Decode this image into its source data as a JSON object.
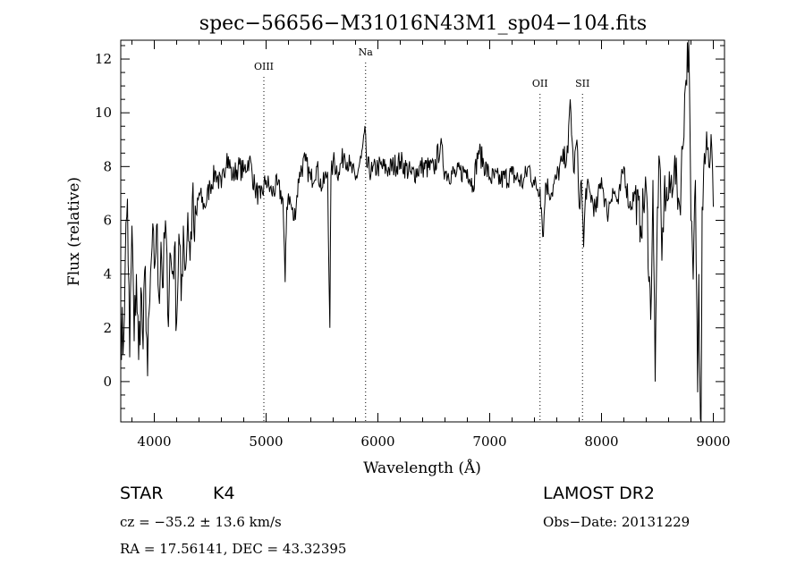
{
  "chart_data": {
    "type": "line",
    "title": "spec−56656−M31016N43M1_sp04−104.fits",
    "xlabel": "Wavelength (Å)",
    "ylabel": "Flux (relative)",
    "xlim": [
      3700,
      9100
    ],
    "ylim": [
      -1.5,
      12.7
    ],
    "xticks": [
      4000,
      5000,
      6000,
      7000,
      8000,
      9000
    ],
    "yticks": [
      0,
      2,
      4,
      6,
      8,
      10,
      12
    ],
    "series": [
      {
        "x": [
          3700,
          3720,
          3740,
          3760,
          3780,
          3800,
          3820,
          3840,
          3860,
          3880,
          3900,
          3920,
          3940,
          3960,
          3980,
          4000,
          4020,
          4040,
          4060,
          4080,
          4100,
          4120,
          4140,
          4160,
          4180,
          4200,
          4220,
          4240,
          4260,
          4280,
          4300,
          4320,
          4340,
          4360,
          4380,
          4400,
          4450,
          4500,
          4550,
          4600,
          4650,
          4700,
          4750,
          4800,
          4850,
          4900,
          4950,
          5000,
          5050,
          5100,
          5150,
          5170,
          5185,
          5200,
          5250,
          5300,
          5350,
          5400,
          5450,
          5500,
          5550,
          5570,
          5580,
          5600,
          5650,
          5700,
          5750,
          5800,
          5850,
          5890,
          5900,
          5950,
          6000,
          6100,
          6200,
          6300,
          6400,
          6500,
          6560,
          6600,
          6700,
          6800,
          6850,
          6900,
          7000,
          7100,
          7200,
          7300,
          7350,
          7400,
          7450,
          7480,
          7500,
          7550,
          7600,
          7650,
          7700,
          7720,
          7750,
          7780,
          7800,
          7820,
          7840,
          7860,
          7900,
          7950,
          8000,
          8050,
          8100,
          8150,
          8200,
          8250,
          8300,
          8350,
          8400,
          8440,
          8460,
          8480,
          8500,
          8520,
          8540,
          8560,
          8600,
          8650,
          8700,
          8750,
          8780,
          8800,
          8820,
          8840,
          8860,
          8870,
          8880,
          8890,
          8900,
          8920,
          8940,
          8960,
          8980,
          9000
        ],
        "y": [
          2.8,
          1.0,
          4.5,
          6.8,
          0.9,
          5.8,
          1.5,
          4.0,
          0.8,
          3.5,
          1.2,
          4.3,
          0.2,
          3.0,
          5.0,
          4.2,
          5.8,
          3.2,
          5.2,
          3.5,
          6.0,
          2.5,
          4.8,
          4.0,
          5.0,
          2.2,
          5.5,
          3.0,
          5.8,
          4.2,
          6.3,
          4.5,
          6.8,
          5.2,
          6.2,
          7.0,
          6.5,
          7.3,
          7.8,
          7.2,
          8.5,
          7.6,
          8.0,
          7.8,
          8.3,
          7.2,
          6.8,
          7.5,
          7.0,
          7.3,
          6.8,
          3.7,
          6.5,
          7.0,
          6.0,
          7.8,
          8.2,
          7.5,
          8.0,
          7.2,
          7.8,
          2.0,
          7.6,
          8.2,
          7.8,
          8.5,
          8.0,
          7.5,
          8.3,
          9.2,
          8.0,
          7.8,
          8.0,
          7.9,
          8.2,
          7.7,
          8.0,
          7.9,
          8.8,
          7.8,
          7.7,
          7.9,
          7.3,
          8.6,
          7.6,
          7.5,
          7.7,
          7.4,
          8.0,
          7.3,
          7.2,
          5.4,
          7.4,
          7.0,
          7.6,
          8.2,
          8.5,
          10.5,
          7.8,
          9.0,
          6.5,
          7.5,
          5.0,
          7.2,
          7.0,
          6.3,
          7.6,
          6.2,
          7.2,
          6.6,
          8.0,
          6.5,
          7.0,
          5.8,
          7.2,
          2.3,
          7.5,
          0.0,
          6.5,
          8.2,
          4.5,
          7.0,
          6.8,
          8.0,
          6.5,
          11.0,
          12.7,
          6.0,
          3.8,
          7.5,
          -0.4,
          4.0,
          0.1,
          -1.5,
          6.5,
          8.5,
          9.3,
          8.0,
          9.2,
          6.5
        ]
      }
    ],
    "annotations": [
      {
        "label": "OIII",
        "x": 4980
      },
      {
        "label": "Na",
        "x": 5890
      },
      {
        "label": "OII",
        "x": 7450
      },
      {
        "label": "SII",
        "x": 7830
      }
    ],
    "grid": false
  },
  "info": {
    "object_class": "STAR",
    "subclass": "K4",
    "survey": "LAMOST DR2",
    "cz": "cz = −35.2 ± 13.6 km/s",
    "obs_date": "Obs−Date: 20131229",
    "coords": "RA =  17.56141, DEC =  43.32395"
  }
}
